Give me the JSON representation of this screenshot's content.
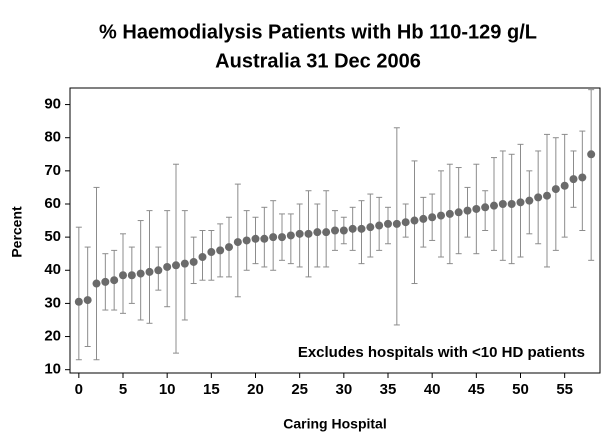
{
  "chart_data": {
    "type": "scatter",
    "title": "% Haemodialysis Patients with Hb 110-129 g/L",
    "subtitle": "Australia  31 Dec 2006",
    "x_label": "Caring Hospital",
    "y_label": "Percent",
    "annotation": "Excludes hospitals with <10 HD patients",
    "color": "#6a6a6a",
    "error_color": "#8c8c8c",
    "grid": false,
    "xlim": [
      -1,
      59
    ],
    "ylim": [
      9,
      95
    ],
    "xticks": [
      0,
      5,
      10,
      15,
      20,
      25,
      30,
      35,
      40,
      45,
      50,
      55
    ],
    "yticks": [
      10,
      20,
      30,
      40,
      50,
      60,
      70,
      80,
      90
    ],
    "x": [
      0,
      1,
      2,
      3,
      4,
      5,
      6,
      7,
      8,
      9,
      10,
      11,
      12,
      13,
      14,
      15,
      16,
      17,
      18,
      19,
      20,
      21,
      22,
      23,
      24,
      25,
      26,
      27,
      28,
      29,
      30,
      31,
      32,
      33,
      34,
      35,
      36,
      37,
      38,
      39,
      40,
      41,
      42,
      43,
      44,
      45,
      46,
      47,
      48,
      49,
      50,
      51,
      52,
      53,
      54,
      55,
      56,
      57,
      58
    ],
    "values": [
      30.5,
      31,
      36,
      36.5,
      37,
      38.5,
      38.5,
      39,
      39.5,
      40,
      41,
      41.5,
      42,
      42.5,
      44,
      45.5,
      46,
      47,
      48.5,
      49,
      49.5,
      49.5,
      50,
      50,
      50.5,
      51,
      51,
      51.5,
      51.5,
      52,
      52,
      52.5,
      52.5,
      53,
      53.5,
      54,
      54,
      54.5,
      55,
      55.5,
      56,
      56.5,
      57,
      57.5,
      58,
      58.5,
      59,
      59.5,
      60,
      60,
      60.5,
      61,
      62,
      62.5,
      64.5,
      65.5,
      67.5,
      68,
      75
    ],
    "lower": [
      13,
      17,
      13,
      28,
      28,
      27,
      30,
      25,
      24,
      34,
      29,
      15,
      25,
      36,
      37,
      37,
      38,
      38,
      32,
      40,
      42,
      41,
      40,
      43,
      42,
      41,
      38,
      41,
      41,
      46,
      48,
      46,
      42,
      44,
      46,
      48,
      23.5,
      50,
      36,
      47,
      49,
      44,
      42,
      45,
      50,
      45,
      52,
      46,
      43,
      42,
      44,
      51,
      48,
      41,
      46,
      50,
      59,
      52,
      43
    ],
    "upper": [
      53,
      47,
      65,
      45,
      46,
      51,
      47,
      55,
      58,
      47,
      58,
      72,
      58,
      50,
      52,
      52,
      54,
      56,
      66,
      58,
      56,
      59,
      61,
      57,
      57,
      60,
      64,
      60,
      64,
      58,
      56,
      59,
      61,
      63,
      62,
      59,
      83,
      60,
      73,
      62,
      63,
      70,
      72,
      71,
      65,
      72,
      64,
      74,
      76,
      75,
      78,
      70,
      76,
      81,
      80,
      81,
      76,
      82,
      94.5
    ]
  }
}
